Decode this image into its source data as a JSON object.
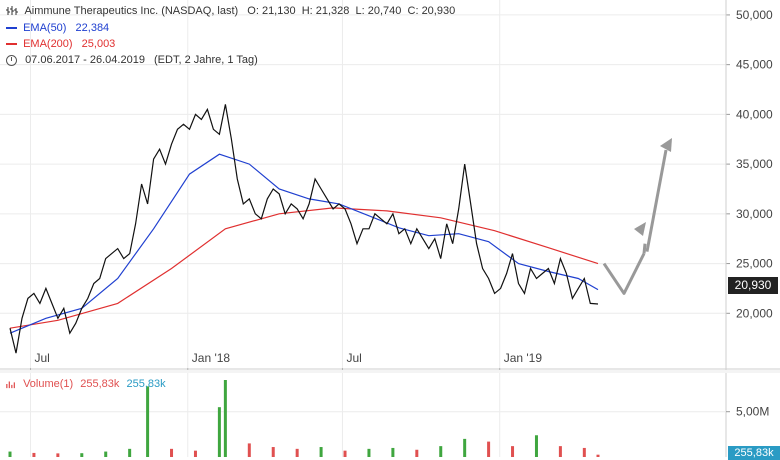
{
  "header": {
    "instrument": "Aimmune Therapeutics Inc. (NASDAQ, last)",
    "ohlc": "O: 21,130  H: 21,328  L: 20,740  C: 20,930",
    "ema50_label": "EMA(50)",
    "ema50_value": "22,384",
    "ema200_label": "EMA(200)",
    "ema200_value": "25,003",
    "range": "07.06.2017 - 26.04.2019",
    "range_note": "(EDT, 2 Jahre, 1 Tag)"
  },
  "volume_legend": {
    "label": "Volume(1)",
    "value_red": "255,83k",
    "value_blue": "255,83k"
  },
  "badges": {
    "last_price": "20,930",
    "last_volume": "255,83k"
  },
  "colors": {
    "price": "#111111",
    "ema50": "#2040d0",
    "ema200": "#e03030",
    "arrow": "#999999",
    "vol_up": "#3fa63f",
    "vol_down": "#e05050",
    "badge_blue": "#2a9bc4"
  },
  "chart_data": {
    "type": "line",
    "y_ticks": [
      "50,000",
      "45,000",
      "40,000",
      "35,000",
      "30,000",
      "25,000",
      "20,000"
    ],
    "y_tick_values": [
      50,
      45,
      40,
      35,
      30,
      25,
      20
    ],
    "x_ticks": [
      "Jul",
      "Jan '18",
      "Jul",
      "Jan '19"
    ],
    "x_tick_dates": [
      "2017-07-01",
      "2018-01-01",
      "2018-07-01",
      "2019-01-01"
    ],
    "start_date": "2017-06-07",
    "end_date": "2019-04-26",
    "ylim": [
      14.5,
      51.5
    ],
    "volume_ticks": [
      "5,00M"
    ],
    "volume_tick_values": [
      5000000
    ],
    "volume_max": 8500000,
    "series": [
      {
        "name": "Aimmune Therapeutics Inc. (NASDAQ, last)",
        "dates": [
          "2017-06-07",
          "2017-06-14",
          "2017-06-21",
          "2017-06-28",
          "2017-07-05",
          "2017-07-12",
          "2017-07-19",
          "2017-07-26",
          "2017-08-02",
          "2017-08-09",
          "2017-08-16",
          "2017-08-23",
          "2017-08-30",
          "2017-09-06",
          "2017-09-13",
          "2017-09-20",
          "2017-09-27",
          "2017-10-04",
          "2017-10-11",
          "2017-10-18",
          "2017-10-25",
          "2017-11-01",
          "2017-11-08",
          "2017-11-15",
          "2017-11-22",
          "2017-11-29",
          "2017-12-06",
          "2017-12-13",
          "2017-12-20",
          "2017-12-27",
          "2018-01-03",
          "2018-01-10",
          "2018-01-17",
          "2018-01-24",
          "2018-01-31",
          "2018-02-07",
          "2018-02-14",
          "2018-02-21",
          "2018-02-28",
          "2018-03-07",
          "2018-03-14",
          "2018-03-21",
          "2018-03-28",
          "2018-04-04",
          "2018-04-11",
          "2018-04-18",
          "2018-04-25",
          "2018-05-02",
          "2018-05-09",
          "2018-05-16",
          "2018-05-23",
          "2018-05-30",
          "2018-06-06",
          "2018-06-13",
          "2018-06-20",
          "2018-06-27",
          "2018-07-04",
          "2018-07-11",
          "2018-07-18",
          "2018-07-25",
          "2018-08-01",
          "2018-08-08",
          "2018-08-15",
          "2018-08-22",
          "2018-08-29",
          "2018-09-05",
          "2018-09-12",
          "2018-09-19",
          "2018-09-26",
          "2018-10-03",
          "2018-10-10",
          "2018-10-17",
          "2018-10-24",
          "2018-10-31",
          "2018-11-07",
          "2018-11-14",
          "2018-11-21",
          "2018-11-28",
          "2018-12-05",
          "2018-12-12",
          "2018-12-19",
          "2018-12-26",
          "2019-01-02",
          "2019-01-09",
          "2019-01-16",
          "2019-01-23",
          "2019-01-30",
          "2019-02-06",
          "2019-02-13",
          "2019-02-20",
          "2019-02-27",
          "2019-03-06",
          "2019-03-13",
          "2019-03-20",
          "2019-03-27",
          "2019-04-03",
          "2019-04-10",
          "2019-04-17",
          "2019-04-26"
        ],
        "values": [
          18.5,
          16.0,
          19.5,
          21.5,
          22.0,
          21.0,
          22.5,
          21.0,
          19.5,
          20.5,
          18.0,
          19.0,
          20.5,
          21.5,
          23.0,
          23.5,
          25.5,
          26.0,
          26.5,
          25.5,
          26.0,
          29.0,
          33.0,
          31.0,
          35.5,
          36.5,
          35.0,
          37.0,
          38.5,
          39.0,
          38.5,
          40.0,
          39.5,
          40.5,
          38.5,
          38.0,
          41.0,
          37.5,
          33.5,
          31.0,
          31.5,
          30.0,
          29.5,
          31.5,
          32.5,
          32.0,
          30.0,
          31.0,
          30.5,
          29.5,
          31.0,
          33.5,
          32.5,
          31.5,
          30.5,
          31.0,
          30.5,
          29.0,
          27.0,
          28.5,
          28.5,
          30.0,
          29.5,
          29.0,
          30.0,
          28.0,
          28.5,
          27.0,
          28.5,
          27.5,
          26.5,
          27.5,
          25.5,
          29.0,
          27.0,
          30.5,
          35.0,
          31.0,
          27.0,
          24.5,
          23.5,
          22.0,
          22.5,
          24.0,
          26.0,
          23.0,
          22.0,
          24.5,
          23.5,
          24.0,
          24.5,
          23.0,
          25.5,
          24.0,
          21.5,
          22.5,
          23.5,
          21.0,
          20.93
        ]
      },
      {
        "name": "EMA(50)",
        "dates": [
          "2017-06-07",
          "2017-07-19",
          "2017-08-30",
          "2017-10-11",
          "2017-11-22",
          "2018-01-03",
          "2018-02-07",
          "2018-03-14",
          "2018-04-18",
          "2018-05-23",
          "2018-06-27",
          "2018-08-01",
          "2018-09-05",
          "2018-10-10",
          "2018-11-14",
          "2018-12-19",
          "2019-01-23",
          "2019-02-27",
          "2019-04-03",
          "2019-04-26"
        ],
        "values": [
          18.0,
          19.5,
          20.5,
          23.5,
          28.5,
          34.0,
          36.0,
          35.0,
          32.5,
          31.5,
          31.0,
          29.8,
          28.6,
          27.8,
          28.0,
          27.2,
          25.0,
          24.2,
          23.5,
          22.38
        ]
      },
      {
        "name": "EMA(200)",
        "dates": [
          "2017-06-07",
          "2017-08-02",
          "2017-10-11",
          "2017-12-13",
          "2018-02-14",
          "2018-04-18",
          "2018-06-20",
          "2018-08-22",
          "2018-10-24",
          "2018-12-26",
          "2019-02-27",
          "2019-04-26"
        ],
        "values": [
          18.5,
          19.3,
          21.0,
          24.5,
          28.5,
          30.0,
          30.6,
          30.3,
          29.6,
          28.3,
          26.6,
          25.0
        ]
      }
    ],
    "projection_arrow": [
      [
        0,
        25.0
      ],
      [
        1,
        22.0
      ],
      [
        2,
        26.0
      ],
      [
        3,
        32.8
      ]
    ],
    "volume": {
      "dates": [
        "2017-06-07",
        "2017-07-05",
        "2017-08-02",
        "2017-08-30",
        "2017-09-27",
        "2017-10-25",
        "2017-11-15",
        "2017-12-13",
        "2018-01-10",
        "2018-02-07",
        "2018-02-14",
        "2018-03-14",
        "2018-04-11",
        "2018-05-09",
        "2018-06-06",
        "2018-07-04",
        "2018-08-01",
        "2018-08-29",
        "2018-09-26",
        "2018-10-24",
        "2018-11-21",
        "2018-12-19",
        "2019-01-16",
        "2019-02-13",
        "2019-03-13",
        "2019-04-10",
        "2019-04-26"
      ],
      "values": [
        600000,
        450000,
        400000,
        420000,
        600000,
        900000,
        7800000,
        900000,
        700000,
        5500000,
        8500000,
        1500000,
        1100000,
        900000,
        1100000,
        700000,
        900000,
        1000000,
        800000,
        1200000,
        2000000,
        1700000,
        1200000,
        2400000,
        1200000,
        1000000,
        255830
      ]
    }
  }
}
